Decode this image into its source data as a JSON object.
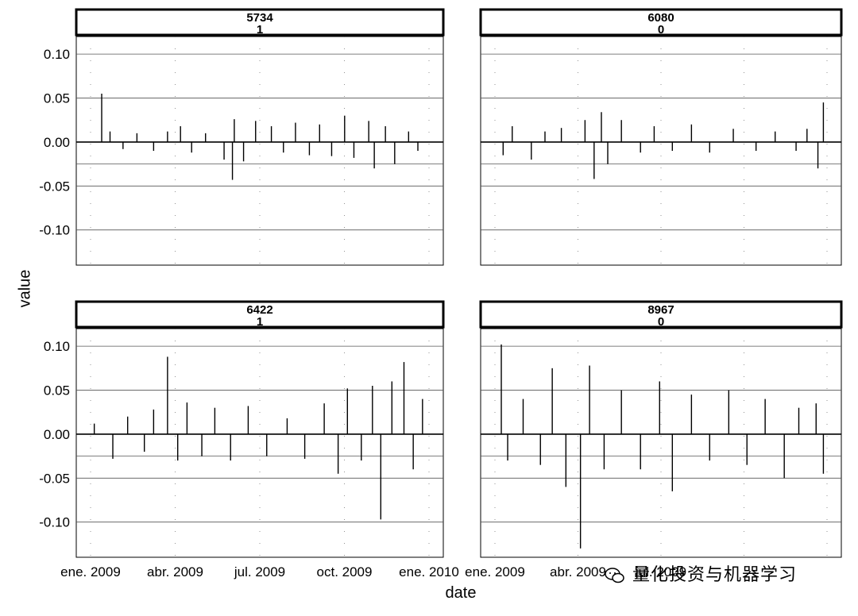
{
  "chart_data": {
    "type": "line",
    "xlabel": "date",
    "ylabel": "value",
    "xlim": [
      "2009-01-01",
      "2010-01-01"
    ],
    "ylim": [
      -0.14,
      0.12
    ],
    "y_ticks": [
      "0.10",
      "0.05",
      "0.00",
      "-0.05",
      "-0.10"
    ],
    "x_ticks": [
      "ene. 2009",
      "abr. 2009",
      "jul. 2009",
      "oct. 2009",
      "ene. 2010"
    ],
    "grid": true,
    "panels": [
      {
        "strip_top": "5734",
        "strip_bottom": "1",
        "spikes": [
          {
            "date": "2009-01-13",
            "value": 0.055
          },
          {
            "date": "2009-01-22",
            "value": 0.012
          },
          {
            "date": "2009-02-05",
            "value": -0.008
          },
          {
            "date": "2009-02-20",
            "value": 0.01
          },
          {
            "date": "2009-03-10",
            "value": -0.01
          },
          {
            "date": "2009-03-25",
            "value": 0.012
          },
          {
            "date": "2009-04-08",
            "value": 0.018
          },
          {
            "date": "2009-04-20",
            "value": -0.012
          },
          {
            "date": "2009-05-05",
            "value": 0.01
          },
          {
            "date": "2009-05-25",
            "value": -0.02
          },
          {
            "date": "2009-06-03",
            "value": -0.043
          },
          {
            "date": "2009-06-05",
            "value": 0.026
          },
          {
            "date": "2009-06-15",
            "value": -0.022
          },
          {
            "date": "2009-06-28",
            "value": 0.024
          },
          {
            "date": "2009-07-15",
            "value": 0.018
          },
          {
            "date": "2009-07-28",
            "value": -0.012
          },
          {
            "date": "2009-08-10",
            "value": 0.022
          },
          {
            "date": "2009-08-25",
            "value": -0.015
          },
          {
            "date": "2009-09-05",
            "value": 0.02
          },
          {
            "date": "2009-09-18",
            "value": -0.016
          },
          {
            "date": "2009-10-02",
            "value": 0.03
          },
          {
            "date": "2009-10-12",
            "value": -0.018
          },
          {
            "date": "2009-10-28",
            "value": 0.024
          },
          {
            "date": "2009-11-03",
            "value": -0.03
          },
          {
            "date": "2009-11-15",
            "value": 0.018
          },
          {
            "date": "2009-11-25",
            "value": -0.025
          },
          {
            "date": "2009-12-10",
            "value": 0.012
          },
          {
            "date": "2009-12-20",
            "value": -0.01
          }
        ]
      },
      {
        "strip_top": "6080",
        "strip_bottom": "0",
        "spikes": [
          {
            "date": "2009-01-10",
            "value": -0.015
          },
          {
            "date": "2009-01-20",
            "value": 0.018
          },
          {
            "date": "2009-02-10",
            "value": -0.02
          },
          {
            "date": "2009-02-25",
            "value": 0.012
          },
          {
            "date": "2009-03-15",
            "value": 0.016
          },
          {
            "date": "2009-04-10",
            "value": 0.025
          },
          {
            "date": "2009-04-20",
            "value": -0.042
          },
          {
            "date": "2009-04-28",
            "value": 0.034
          },
          {
            "date": "2009-05-05",
            "value": -0.025
          },
          {
            "date": "2009-05-20",
            "value": 0.025
          },
          {
            "date": "2009-06-10",
            "value": -0.012
          },
          {
            "date": "2009-06-25",
            "value": 0.018
          },
          {
            "date": "2009-07-15",
            "value": -0.01
          },
          {
            "date": "2009-08-05",
            "value": 0.02
          },
          {
            "date": "2009-08-25",
            "value": -0.012
          },
          {
            "date": "2009-09-20",
            "value": 0.015
          },
          {
            "date": "2009-10-15",
            "value": -0.01
          },
          {
            "date": "2009-11-05",
            "value": 0.012
          },
          {
            "date": "2009-11-28",
            "value": -0.01
          },
          {
            "date": "2009-12-10",
            "value": 0.015
          },
          {
            "date": "2009-12-22",
            "value": -0.03
          },
          {
            "date": "2009-12-28",
            "value": 0.045
          }
        ]
      },
      {
        "strip_top": "6422",
        "strip_bottom": "1",
        "spikes": [
          {
            "date": "2009-01-05",
            "value": 0.012
          },
          {
            "date": "2009-01-25",
            "value": -0.028
          },
          {
            "date": "2009-02-10",
            "value": 0.02
          },
          {
            "date": "2009-02-28",
            "value": -0.02
          },
          {
            "date": "2009-03-10",
            "value": 0.028
          },
          {
            "date": "2009-03-25",
            "value": 0.088
          },
          {
            "date": "2009-04-05",
            "value": -0.03
          },
          {
            "date": "2009-04-15",
            "value": 0.036
          },
          {
            "date": "2009-05-01",
            "value": -0.025
          },
          {
            "date": "2009-05-15",
            "value": 0.03
          },
          {
            "date": "2009-06-01",
            "value": -0.03
          },
          {
            "date": "2009-06-20",
            "value": 0.032
          },
          {
            "date": "2009-07-10",
            "value": -0.025
          },
          {
            "date": "2009-08-01",
            "value": 0.018
          },
          {
            "date": "2009-08-20",
            "value": -0.028
          },
          {
            "date": "2009-09-10",
            "value": 0.035
          },
          {
            "date": "2009-09-25",
            "value": -0.045
          },
          {
            "date": "2009-10-05",
            "value": 0.052
          },
          {
            "date": "2009-10-20",
            "value": -0.03
          },
          {
            "date": "2009-11-01",
            "value": 0.055
          },
          {
            "date": "2009-11-10",
            "value": -0.097
          },
          {
            "date": "2009-11-22",
            "value": 0.06
          },
          {
            "date": "2009-12-05",
            "value": 0.082
          },
          {
            "date": "2009-12-15",
            "value": -0.04
          },
          {
            "date": "2009-12-25",
            "value": 0.04
          }
        ]
      },
      {
        "strip_top": "8967",
        "strip_bottom": "0",
        "spikes": [
          {
            "date": "2009-01-08",
            "value": 0.102
          },
          {
            "date": "2009-01-15",
            "value": -0.03
          },
          {
            "date": "2009-02-01",
            "value": 0.04
          },
          {
            "date": "2009-02-20",
            "value": -0.035
          },
          {
            "date": "2009-03-05",
            "value": 0.075
          },
          {
            "date": "2009-03-20",
            "value": -0.06
          },
          {
            "date": "2009-04-05",
            "value": -0.13
          },
          {
            "date": "2009-04-15",
            "value": 0.078
          },
          {
            "date": "2009-05-01",
            "value": -0.04
          },
          {
            "date": "2009-05-20",
            "value": 0.05
          },
          {
            "date": "2009-06-10",
            "value": -0.04
          },
          {
            "date": "2009-07-01",
            "value": 0.06
          },
          {
            "date": "2009-07-15",
            "value": -0.065
          },
          {
            "date": "2009-08-05",
            "value": 0.045
          },
          {
            "date": "2009-08-25",
            "value": -0.03
          },
          {
            "date": "2009-09-15",
            "value": 0.05
          },
          {
            "date": "2009-10-05",
            "value": -0.035
          },
          {
            "date": "2009-10-25",
            "value": 0.04
          },
          {
            "date": "2009-11-15",
            "value": -0.05
          },
          {
            "date": "2009-12-01",
            "value": 0.03
          },
          {
            "date": "2009-12-20",
            "value": 0.035
          },
          {
            "date": "2009-12-28",
            "value": -0.045
          }
        ]
      }
    ]
  },
  "watermark": "量化投资与机器学习"
}
